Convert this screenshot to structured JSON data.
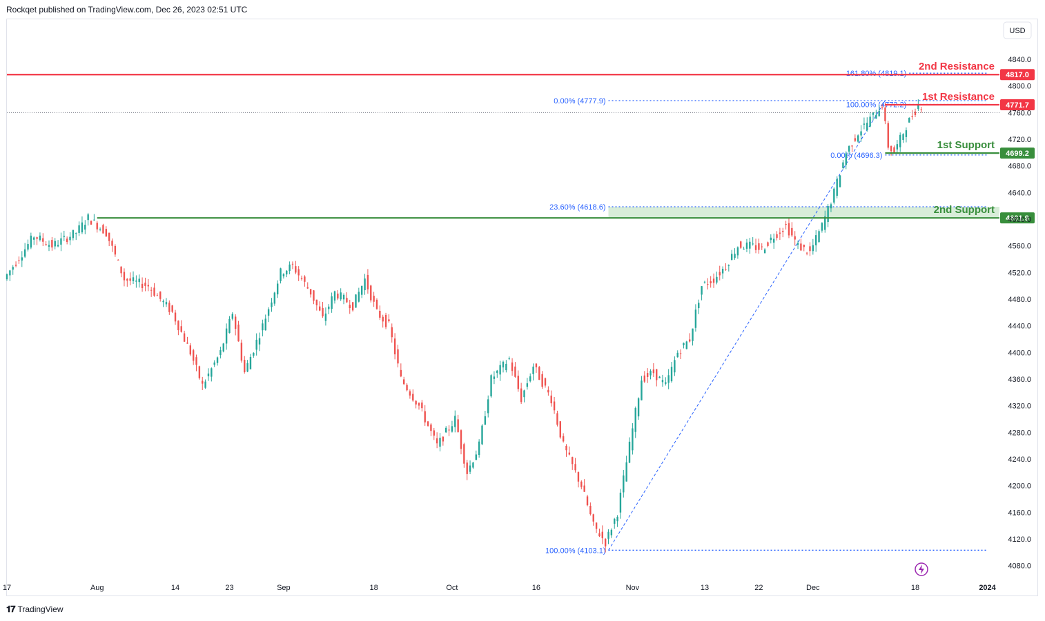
{
  "header": {
    "published": "Rockqet published on TradingView.com, Dec 26, 2023 02:51 UTC"
  },
  "footer": {
    "brand": "TradingView"
  },
  "currency": "USD",
  "colors": {
    "up": "#26a69a",
    "down": "#ef5350",
    "resistance": "#f23645",
    "support": "#388e3c",
    "fib": "#2962ff",
    "zone": "#c8e6c9"
  },
  "chart_data": {
    "type": "candlestick",
    "title": "",
    "ylim": [
      4060,
      4900
    ],
    "y_ticks": [
      "4880.0",
      "4840.0",
      "4800.0",
      "4760.0",
      "4720.0",
      "4680.0",
      "4640.0",
      "4600.0",
      "4560.0",
      "4520.0",
      "4480.0",
      "4440.0",
      "4400.0",
      "4360.0",
      "4320.0",
      "4280.0",
      "4240.0",
      "4200.0",
      "4160.0",
      "4120.0",
      "4080.0"
    ],
    "x_ticks": [
      {
        "label": "17",
        "day": 0
      },
      {
        "label": "Aug",
        "day": 15
      },
      {
        "label": "14",
        "day": 28
      },
      {
        "label": "23",
        "day": 37
      },
      {
        "label": "Sep",
        "day": 46
      },
      {
        "label": "18",
        "day": 61
      },
      {
        "label": "Oct",
        "day": 74
      },
      {
        "label": "16",
        "day": 88
      },
      {
        "label": "Nov",
        "day": 104
      },
      {
        "label": "13",
        "day": 116
      },
      {
        "label": "22",
        "day": 125
      },
      {
        "label": "Dec",
        "day": 134
      },
      {
        "label": "18",
        "day": 151
      },
      {
        "label": "2024",
        "day": 163
      }
    ],
    "last_price": 4771.7,
    "path_points": [
      {
        "day": 0,
        "price": 4510
      },
      {
        "day": 5,
        "price": 4575
      },
      {
        "day": 8,
        "price": 4560
      },
      {
        "day": 12,
        "price": 4580
      },
      {
        "day": 14,
        "price": 4602
      },
      {
        "day": 17,
        "price": 4580
      },
      {
        "day": 20,
        "price": 4510
      },
      {
        "day": 24,
        "price": 4500
      },
      {
        "day": 28,
        "price": 4460
      },
      {
        "day": 31,
        "price": 4400
      },
      {
        "day": 33,
        "price": 4350
      },
      {
        "day": 36,
        "price": 4400
      },
      {
        "day": 38,
        "price": 4460
      },
      {
        "day": 40,
        "price": 4370
      },
      {
        "day": 43,
        "price": 4440
      },
      {
        "day": 46,
        "price": 4520
      },
      {
        "day": 48,
        "price": 4530
      },
      {
        "day": 51,
        "price": 4490
      },
      {
        "day": 53,
        "price": 4450
      },
      {
        "day": 55,
        "price": 4490
      },
      {
        "day": 58,
        "price": 4470
      },
      {
        "day": 60,
        "price": 4510
      },
      {
        "day": 62,
        "price": 4460
      },
      {
        "day": 64,
        "price": 4440
      },
      {
        "day": 66,
        "price": 4360
      },
      {
        "day": 69,
        "price": 4320
      },
      {
        "day": 72,
        "price": 4260
      },
      {
        "day": 75,
        "price": 4300
      },
      {
        "day": 77,
        "price": 4220
      },
      {
        "day": 79,
        "price": 4260
      },
      {
        "day": 81,
        "price": 4360
      },
      {
        "day": 84,
        "price": 4390
      },
      {
        "day": 86,
        "price": 4330
      },
      {
        "day": 88,
        "price": 4380
      },
      {
        "day": 91,
        "price": 4330
      },
      {
        "day": 93,
        "price": 4260
      },
      {
        "day": 96,
        "price": 4200
      },
      {
        "day": 98,
        "price": 4140
      },
      {
        "day": 100,
        "price": 4115
      },
      {
        "day": 102,
        "price": 4160
      },
      {
        "day": 104,
        "price": 4260
      },
      {
        "day": 106,
        "price": 4360
      },
      {
        "day": 108,
        "price": 4370
      },
      {
        "day": 110,
        "price": 4350
      },
      {
        "day": 112,
        "price": 4400
      },
      {
        "day": 114,
        "price": 4420
      },
      {
        "day": 116,
        "price": 4500
      },
      {
        "day": 118,
        "price": 4510
      },
      {
        "day": 120,
        "price": 4530
      },
      {
        "day": 122,
        "price": 4560
      },
      {
        "day": 124,
        "price": 4560
      },
      {
        "day": 126,
        "price": 4555
      },
      {
        "day": 128,
        "price": 4575
      },
      {
        "day": 130,
        "price": 4590
      },
      {
        "day": 132,
        "price": 4560
      },
      {
        "day": 134,
        "price": 4550
      },
      {
        "day": 136,
        "price": 4590
      },
      {
        "day": 138,
        "price": 4640
      },
      {
        "day": 140,
        "price": 4700
      },
      {
        "day": 142,
        "price": 4730
      },
      {
        "day": 144,
        "price": 4750
      },
      {
        "day": 146,
        "price": 4772
      },
      {
        "day": 147,
        "price": 4710
      },
      {
        "day": 148,
        "price": 4700
      },
      {
        "day": 150,
        "price": 4740
      },
      {
        "day": 152,
        "price": 4771
      }
    ],
    "levels": [
      {
        "name": "2nd Resistance",
        "price": 4817.0,
        "label": "4817.0",
        "kind": "resistance"
      },
      {
        "name": "1st Resistance",
        "price": 4771.7,
        "label": "4771.7",
        "kind": "resistance"
      },
      {
        "name": "1st Support",
        "price": 4699.2,
        "label": "4699.2",
        "kind": "support"
      },
      {
        "name": "2nd Support",
        "price": 4601.9,
        "label": "4601.9",
        "kind": "support"
      }
    ],
    "fib_labels": [
      {
        "text": "161.80% (4819.1)",
        "price": 4819.1,
        "day": 150
      },
      {
        "text": "0.00% (4777.9)",
        "price": 4777.9,
        "day": 100
      },
      {
        "text": "100.00% (4772.2)",
        "price": 4772.2,
        "day": 150
      },
      {
        "text": "0.00% (4696.3)",
        "price": 4696.3,
        "day": 146
      },
      {
        "text": "23.60% (4618.6)",
        "price": 4618.6,
        "day": 100
      },
      {
        "text": "100.00% (4103.1)",
        "price": 4103.1,
        "day": 100
      }
    ]
  }
}
